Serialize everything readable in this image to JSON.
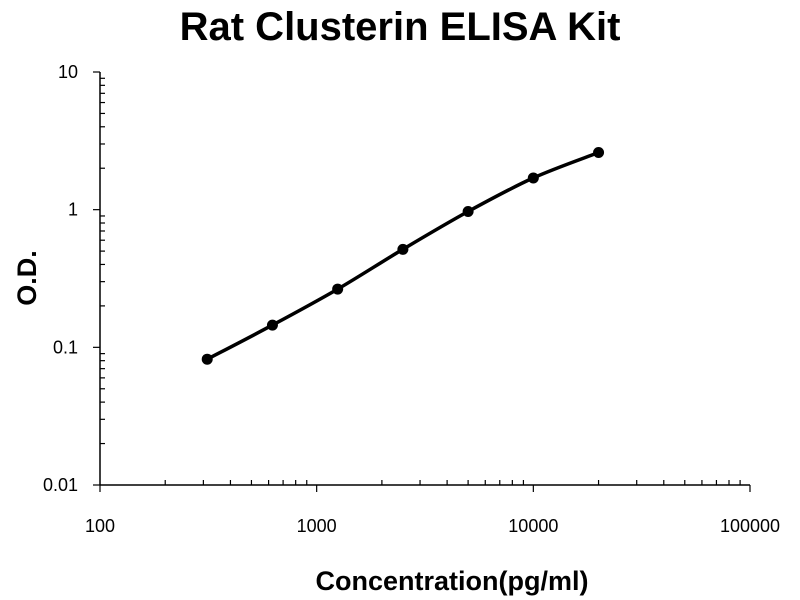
{
  "chart_data": {
    "type": "scatter",
    "title": "Rat Clusterin ELISA Kit",
    "xlabel": "Concentration(pg/ml)",
    "ylabel": "O.D.",
    "x_scale": "log",
    "y_scale": "log",
    "xlim": [
      100,
      100000
    ],
    "ylim": [
      0.01,
      10
    ],
    "x_tick_labels": [
      "100",
      "1000",
      "10000",
      "100000"
    ],
    "y_tick_labels": [
      "0.01",
      "0.1",
      "1",
      "10"
    ],
    "grid": false,
    "legend": "none",
    "line_color": "#000000",
    "series": [
      {
        "x": [
          312.5,
          625,
          1250,
          2500,
          5000,
          10000,
          20000
        ],
        "y": [
          0.082,
          0.145,
          0.265,
          0.515,
          0.97,
          1.7,
          2.6
        ]
      }
    ]
  }
}
